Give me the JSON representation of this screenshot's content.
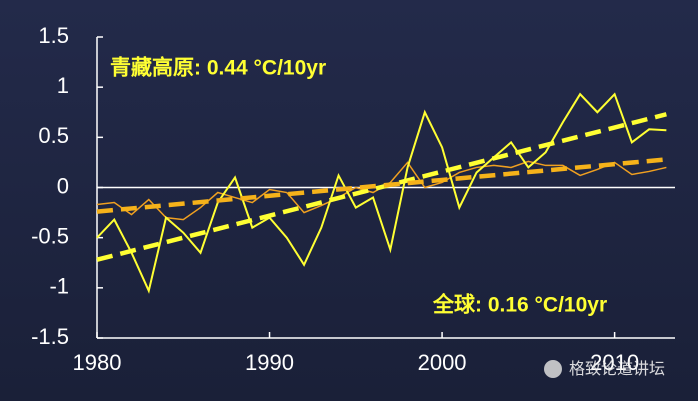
{
  "chart_data": {
    "type": "line",
    "x": [
      1980,
      1981,
      1982,
      1983,
      1984,
      1985,
      1986,
      1987,
      1988,
      1989,
      1990,
      1991,
      1992,
      1993,
      1994,
      1995,
      1996,
      1997,
      1998,
      1999,
      2000,
      2001,
      2002,
      2003,
      2004,
      2005,
      2006,
      2007,
      2008,
      2009,
      2010,
      2011,
      2012,
      2013
    ],
    "series": [
      {
        "color": "#ffff33",
        "values": [
          -0.5,
          -0.32,
          -0.65,
          -1.03,
          -0.3,
          -0.45,
          -0.65,
          -0.15,
          0.1,
          -0.4,
          -0.3,
          -0.5,
          -0.77,
          -0.4,
          0.12,
          -0.2,
          -0.1,
          -0.62,
          0.2,
          0.75,
          0.4,
          -0.2,
          0.15,
          0.3,
          0.45,
          0.2,
          0.35,
          0.65,
          0.93,
          0.75,
          0.93,
          0.45,
          0.58,
          0.57
        ]
      },
      {
        "color": "#f0a020",
        "values": [
          -0.17,
          -0.15,
          -0.27,
          -0.12,
          -0.3,
          -0.32,
          -0.2,
          -0.05,
          -0.1,
          -0.15,
          -0.02,
          -0.05,
          -0.25,
          -0.18,
          -0.1,
          0.0,
          -0.05,
          0.05,
          0.25,
          0.0,
          0.05,
          0.15,
          0.2,
          0.22,
          0.2,
          0.26,
          0.22,
          0.22,
          0.12,
          0.18,
          0.25,
          0.13,
          0.16,
          0.2
        ]
      }
    ],
    "trends": [
      {
        "color": "#ffff33",
        "x": [
          1980,
          2013
        ],
        "values": [
          -0.72,
          0.73
        ]
      },
      {
        "color": "#f5b21a",
        "x": [
          1980,
          2013
        ],
        "values": [
          -0.24,
          0.28
        ]
      }
    ],
    "annotations": [
      "青藏高原: 0.44 °C/10yr",
      "全球: 0.16 °C/10yr",
      "格致论道讲坛"
    ],
    "xlim": [
      1980,
      2013.5
    ],
    "xticks": [
      1980,
      1990,
      2000,
      2010
    ],
    "ylim": [
      -1.5,
      1.5
    ],
    "yticks": [
      -1.5,
      -1,
      -0.5,
      0,
      0.5,
      1,
      1.5
    ]
  }
}
